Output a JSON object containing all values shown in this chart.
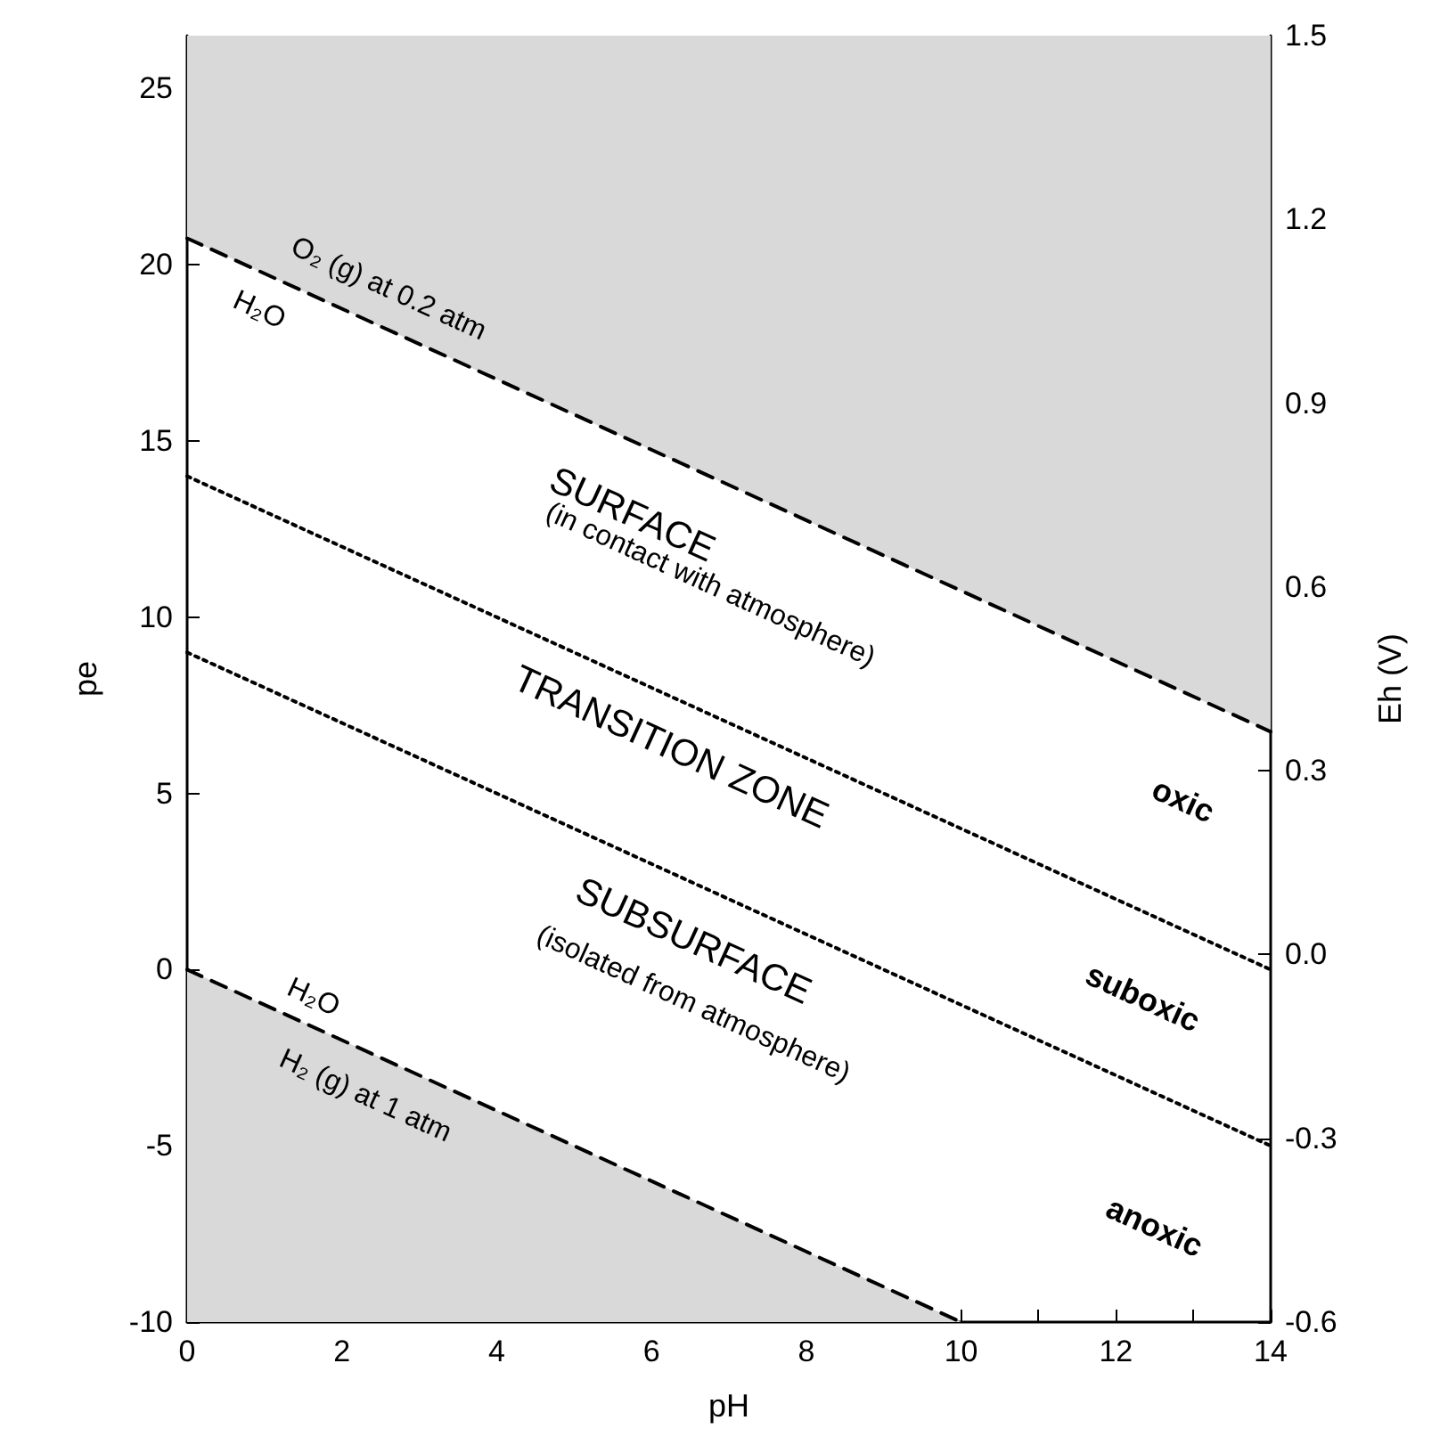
{
  "chart_data": {
    "type": "line",
    "xlabel": "pH",
    "ylabel": "pe",
    "y2label": "Eh (V)",
    "xlim": [
      0,
      14
    ],
    "ylim": [
      -10,
      26.5
    ],
    "y2lim": [
      -0.6,
      1.5
    ],
    "xticks": [
      0,
      {
        "value": 1,
        "label": null
      },
      2,
      {
        "value": 3,
        "label": null
      },
      4,
      {
        "value": 5,
        "label": null
      },
      6,
      {
        "value": 7,
        "label": null
      },
      8,
      {
        "value": 9,
        "label": null
      },
      10,
      {
        "value": 11,
        "label": null
      },
      12,
      {
        "value": 13,
        "label": null
      },
      14
    ],
    "yticks": [
      -10,
      -5,
      0,
      5,
      10,
      15,
      20,
      25
    ],
    "y2ticks": [
      -0.6,
      -0.3,
      {
        "value": 0,
        "label": "0.0"
      },
      0.3,
      0.6,
      0.9,
      1.2,
      1.5
    ],
    "grid": false,
    "marker": "none",
    "series": [
      {
        "color": "#000000",
        "line_style": "dashed",
        "x": [
          0,
          14
        ],
        "values": [
          20.75,
          6.75
        ],
        "lower": [
          20.75,
          6.75
        ],
        "upper": [
          26.5,
          26.5
        ]
      },
      {
        "color": "#000000",
        "line_style": "dotted",
        "x": [
          0,
          14
        ],
        "values": [
          14,
          0
        ]
      },
      {
        "color": "#000000",
        "line_style": "dotted",
        "x": [
          0,
          14
        ],
        "values": [
          9,
          -5
        ]
      },
      {
        "color": "#000000",
        "line_style": "dashed",
        "x": [
          0,
          10
        ],
        "values": [
          0,
          -10
        ],
        "lower": [
          -10,
          -10
        ],
        "upper": [
          0,
          -10
        ]
      }
    ],
    "annotations": [
      "O₂ (g) at 0.2 atm",
      "H₂O",
      "SURFACE",
      "(in contact with atmosphere)",
      "TRANSITION ZONE",
      "SUBSURFACE",
      "(isolated from atmosphere)",
      "H₂O",
      "H₂ (g) at 1 atm",
      "oxic",
      "suboxic",
      "anoxic"
    ]
  }
}
